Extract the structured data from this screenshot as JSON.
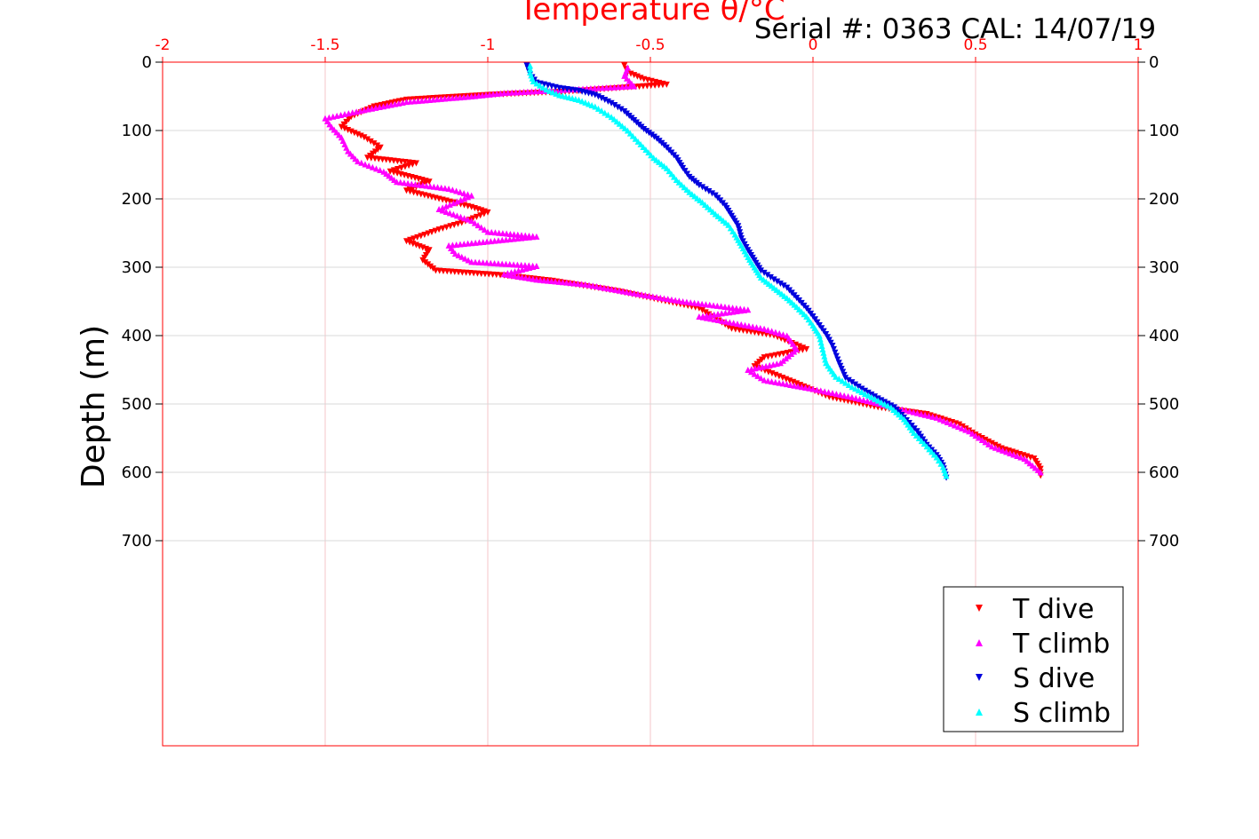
{
  "colors": {
    "axis": "#ff0000",
    "grid_x": "#f4c4c8",
    "grid_y": "#d9d9d9",
    "T dive": "#ff0000",
    "T climb": "#ff00ff",
    "S dive": "#0000dd",
    "S climb": "#00ffff"
  },
  "chart_data": {
    "type": "scatter",
    "title": "Temperature θ/°C",
    "annotation": "Serial #: 0363  CAL: 14/07/19",
    "ylabel": "Depth (m)",
    "xlabel": "",
    "xlim": [
      -2,
      1
    ],
    "ylim": [
      0,
      1000
    ],
    "y_reversed": true,
    "x_axis_position": "top",
    "x_ticks": [
      -2,
      -1.5,
      -1,
      -0.5,
      0,
      0.5,
      1
    ],
    "x_tick_labels": [
      "-2",
      "-1.5",
      "-1",
      "-0.5",
      "0",
      "0.5",
      "1"
    ],
    "y_ticks": [
      0,
      100,
      200,
      300,
      400,
      500,
      600,
      700
    ],
    "y_tick_labels": [
      "0",
      "100",
      "200",
      "300",
      "400",
      "500",
      "600",
      "700"
    ],
    "grid": true,
    "legend_position": "bottom-right",
    "series": [
      {
        "name": "T dive",
        "marker": "triangle-down",
        "points": [
          [
            -0.58,
            5
          ],
          [
            -0.57,
            15
          ],
          [
            -0.52,
            25
          ],
          [
            -0.45,
            33
          ],
          [
            -0.75,
            43
          ],
          [
            -1.0,
            48
          ],
          [
            -1.25,
            55
          ],
          [
            -1.35,
            65
          ],
          [
            -1.42,
            80
          ],
          [
            -1.45,
            95
          ],
          [
            -1.38,
            110
          ],
          [
            -1.33,
            125
          ],
          [
            -1.37,
            140
          ],
          [
            -1.22,
            148
          ],
          [
            -1.3,
            160
          ],
          [
            -1.18,
            175
          ],
          [
            -1.25,
            188
          ],
          [
            -1.15,
            200
          ],
          [
            -1.05,
            212
          ],
          [
            -1.0,
            220
          ],
          [
            -1.08,
            235
          ],
          [
            -1.15,
            245
          ],
          [
            -1.25,
            262
          ],
          [
            -1.18,
            275
          ],
          [
            -1.2,
            290
          ],
          [
            -1.16,
            305
          ],
          [
            -0.95,
            312
          ],
          [
            -0.8,
            320
          ],
          [
            -0.6,
            335
          ],
          [
            -0.5,
            345
          ],
          [
            -0.35,
            360
          ],
          [
            -0.3,
            375
          ],
          [
            -0.25,
            390
          ],
          [
            -0.12,
            400
          ],
          [
            -0.02,
            420
          ],
          [
            -0.15,
            432
          ],
          [
            -0.18,
            445
          ],
          [
            -0.05,
            470
          ],
          [
            0.05,
            490
          ],
          [
            0.2,
            505
          ],
          [
            0.35,
            515
          ],
          [
            0.45,
            530
          ],
          [
            0.5,
            545
          ],
          [
            0.58,
            565
          ],
          [
            0.68,
            580
          ],
          [
            0.7,
            595
          ],
          [
            0.7,
            605
          ]
        ]
      },
      {
        "name": "T climb",
        "marker": "triangle-up",
        "points": [
          [
            0.7,
            600
          ],
          [
            0.65,
            580
          ],
          [
            0.55,
            562
          ],
          [
            0.48,
            540
          ],
          [
            0.38,
            520
          ],
          [
            0.25,
            505
          ],
          [
            0.12,
            490
          ],
          [
            0.0,
            478
          ],
          [
            -0.15,
            465
          ],
          [
            -0.2,
            450
          ],
          [
            -0.1,
            440
          ],
          [
            -0.05,
            420
          ],
          [
            -0.08,
            400
          ],
          [
            -0.15,
            390
          ],
          [
            -0.35,
            372
          ],
          [
            -0.2,
            362
          ],
          [
            -0.4,
            350
          ],
          [
            -0.55,
            338
          ],
          [
            -0.7,
            325
          ],
          [
            -0.85,
            318
          ],
          [
            -0.95,
            310
          ],
          [
            -0.85,
            298
          ],
          [
            -1.05,
            292
          ],
          [
            -1.1,
            280
          ],
          [
            -1.12,
            268
          ],
          [
            -0.85,
            255
          ],
          [
            -1.0,
            248
          ],
          [
            -1.05,
            232
          ],
          [
            -1.15,
            215
          ],
          [
            -1.05,
            195
          ],
          [
            -1.12,
            185
          ],
          [
            -1.28,
            175
          ],
          [
            -1.32,
            160
          ],
          [
            -1.4,
            145
          ],
          [
            -1.43,
            130
          ],
          [
            -1.45,
            110
          ],
          [
            -1.48,
            95
          ],
          [
            -1.5,
            82
          ],
          [
            -1.38,
            70
          ],
          [
            -1.25,
            58
          ],
          [
            -1.05,
            50
          ],
          [
            -0.95,
            45
          ],
          [
            -0.55,
            35
          ],
          [
            -0.58,
            20
          ],
          [
            -0.57,
            8
          ]
        ]
      },
      {
        "name": "S dive",
        "marker": "triangle-down",
        "points": [
          [
            -0.88,
            5
          ],
          [
            -0.87,
            18
          ],
          [
            -0.85,
            30
          ],
          [
            -0.78,
            38
          ],
          [
            -0.72,
            42
          ],
          [
            -0.67,
            48
          ],
          [
            -0.62,
            60
          ],
          [
            -0.58,
            72
          ],
          [
            -0.55,
            85
          ],
          [
            -0.52,
            98
          ],
          [
            -0.48,
            112
          ],
          [
            -0.45,
            125
          ],
          [
            -0.42,
            140
          ],
          [
            -0.4,
            155
          ],
          [
            -0.38,
            168
          ],
          [
            -0.35,
            180
          ],
          [
            -0.3,
            195
          ],
          [
            -0.27,
            210
          ],
          [
            -0.25,
            225
          ],
          [
            -0.23,
            240
          ],
          [
            -0.22,
            258
          ],
          [
            -0.2,
            275
          ],
          [
            -0.18,
            290
          ],
          [
            -0.16,
            305
          ],
          [
            -0.12,
            318
          ],
          [
            -0.08,
            330
          ],
          [
            -0.05,
            345
          ],
          [
            -0.02,
            360
          ],
          [
            0.0,
            372
          ],
          [
            0.02,
            385
          ],
          [
            0.04,
            398
          ],
          [
            0.06,
            415
          ],
          [
            0.08,
            440
          ],
          [
            0.1,
            462
          ],
          [
            0.15,
            478
          ],
          [
            0.2,
            492
          ],
          [
            0.25,
            505
          ],
          [
            0.28,
            520
          ],
          [
            0.32,
            540
          ],
          [
            0.35,
            560
          ],
          [
            0.38,
            575
          ],
          [
            0.4,
            590
          ],
          [
            0.41,
            608
          ]
        ]
      },
      {
        "name": "S climb",
        "marker": "triangle-up",
        "points": [
          [
            0.41,
            605
          ],
          [
            0.4,
            592
          ],
          [
            0.38,
            578
          ],
          [
            0.35,
            562
          ],
          [
            0.31,
            542
          ],
          [
            0.28,
            522
          ],
          [
            0.24,
            505
          ],
          [
            0.18,
            490
          ],
          [
            0.12,
            475
          ],
          [
            0.07,
            460
          ],
          [
            0.04,
            440
          ],
          [
            0.03,
            420
          ],
          [
            0.02,
            400
          ],
          [
            0.0,
            385
          ],
          [
            -0.02,
            372
          ],
          [
            -0.05,
            358
          ],
          [
            -0.08,
            345
          ],
          [
            -0.12,
            330
          ],
          [
            -0.16,
            315
          ],
          [
            -0.18,
            300
          ],
          [
            -0.2,
            285
          ],
          [
            -0.22,
            268
          ],
          [
            -0.24,
            252
          ],
          [
            -0.26,
            238
          ],
          [
            -0.3,
            222
          ],
          [
            -0.34,
            205
          ],
          [
            -0.38,
            190
          ],
          [
            -0.42,
            172
          ],
          [
            -0.45,
            155
          ],
          [
            -0.49,
            140
          ],
          [
            -0.53,
            120
          ],
          [
            -0.57,
            100
          ],
          [
            -0.62,
            80
          ],
          [
            -0.67,
            65
          ],
          [
            -0.72,
            55
          ],
          [
            -0.78,
            48
          ],
          [
            -0.82,
            40
          ],
          [
            -0.86,
            28
          ],
          [
            -0.87,
            15
          ],
          [
            -0.87,
            5
          ]
        ]
      }
    ]
  }
}
